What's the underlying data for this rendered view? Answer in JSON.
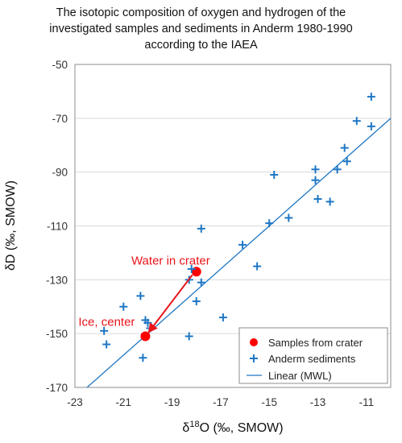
{
  "chart_data": {
    "type": "scatter",
    "title_lines": [
      "The isotopic composition of oxygen and hydrogen of the",
      "investigated samples and sediments in Anderm 1980-1990",
      "according to the IAEA"
    ],
    "xlabel_prefix": "δ",
    "xlabel_sup": "18",
    "xlabel_rest": "O (‰, SMOW)",
    "ylabel": "δD (‰, SMOW)",
    "xlim": [
      -23,
      -10
    ],
    "ylim": [
      -170,
      -50
    ],
    "xticks": [
      -23,
      -21,
      -19,
      -17,
      -15,
      -13,
      -11
    ],
    "yticks": [
      -170,
      -150,
      -130,
      -110,
      -90,
      -70,
      -50
    ],
    "grid": "horizontal",
    "legend_position": "bottom-right",
    "series": [
      {
        "name": "Samples from crater",
        "kind": "points",
        "color": "#ff0000",
        "points": [
          [
            -18.0,
            -127
          ],
          [
            -20.1,
            -151
          ]
        ]
      },
      {
        "name": "Anderm sediments",
        "kind": "points",
        "color": "#1f77c4",
        "points": [
          [
            -21.8,
            -149
          ],
          [
            -21.7,
            -154
          ],
          [
            -21.0,
            -140
          ],
          [
            -20.3,
            -136
          ],
          [
            -20.1,
            -145
          ],
          [
            -20.0,
            -146
          ],
          [
            -20.2,
            -159
          ],
          [
            -19.9,
            -148
          ],
          [
            -18.3,
            -130
          ],
          [
            -18.2,
            -126
          ],
          [
            -18.3,
            -151
          ],
          [
            -18.0,
            -138
          ],
          [
            -17.8,
            -131
          ],
          [
            -17.8,
            -111
          ],
          [
            -16.9,
            -144
          ],
          [
            -16.1,
            -117
          ],
          [
            -15.5,
            -125
          ],
          [
            -15.0,
            -109
          ],
          [
            -14.8,
            -91
          ],
          [
            -14.2,
            -107
          ],
          [
            -13.1,
            -89
          ],
          [
            -13.1,
            -93
          ],
          [
            -13.0,
            -100
          ],
          [
            -12.5,
            -101
          ],
          [
            -12.2,
            -89
          ],
          [
            -11.9,
            -81
          ],
          [
            -11.8,
            -86
          ],
          [
            -11.4,
            -71
          ],
          [
            -10.8,
            -62
          ],
          [
            -10.8,
            -73
          ]
        ]
      },
      {
        "name": "Linear (MWL)",
        "kind": "line",
        "color": "#1f77c4",
        "slope": 8,
        "intercept": 10
      }
    ],
    "annotations": [
      {
        "text": "Water in crater",
        "at": [
          -18.0,
          -127
        ]
      },
      {
        "text": "Ice, center",
        "at": [
          -20.1,
          -151
        ]
      }
    ]
  }
}
